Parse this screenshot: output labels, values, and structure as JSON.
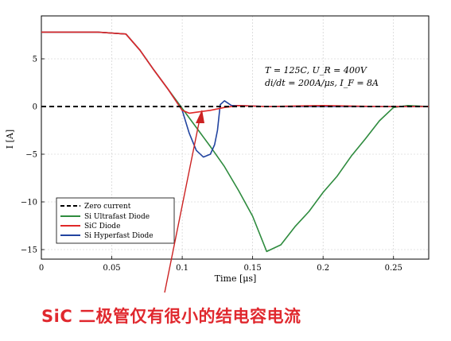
{
  "chart_data": {
    "type": "line",
    "title": "",
    "xlabel": "Time [μs]",
    "ylabel": "I [A]",
    "xlim": [
      0,
      0.275
    ],
    "ylim": [
      -16,
      9.5
    ],
    "xticks": [
      0,
      0.05,
      0.1,
      0.15,
      0.2,
      0.25
    ],
    "xtick_labels": [
      "0",
      "0.05",
      "0.1",
      "0.15",
      "0.2",
      "0.25"
    ],
    "yticks": [
      5,
      0,
      -5,
      -10,
      -15
    ],
    "ytick_labels": [
      "5",
      "0",
      "−5",
      "−10",
      "−15"
    ],
    "grid": true,
    "legend_position": "bottom-left",
    "annotation_lines": [
      "T = 125C, U_R = 400V",
      "di/dt = 200A/μs, I_F = 8A"
    ],
    "series": [
      {
        "name": "Zero current",
        "color": "#000000",
        "style": "dashed",
        "x": [
          0,
          0.275
        ],
        "y": [
          0,
          0
        ]
      },
      {
        "name": "Si Ultrafast Diode",
        "color": "#2e8b3e",
        "style": "solid",
        "x": [
          0,
          0.04,
          0.06,
          0.07,
          0.08,
          0.09,
          0.1,
          0.11,
          0.12,
          0.13,
          0.14,
          0.15,
          0.16,
          0.17,
          0.18,
          0.19,
          0.2,
          0.21,
          0.22,
          0.23,
          0.24,
          0.25,
          0.26,
          0.275
        ],
        "y": [
          7.8,
          7.8,
          7.6,
          5.9,
          3.8,
          1.8,
          -0.2,
          -2.2,
          -4.2,
          -6.3,
          -8.8,
          -11.5,
          -15.2,
          -14.5,
          -12.6,
          -11.0,
          -9.0,
          -7.3,
          -5.2,
          -3.4,
          -1.5,
          -0.1,
          0.1,
          0.0
        ]
      },
      {
        "name": "SiC Diode",
        "color": "#e02828",
        "style": "solid",
        "x": [
          0,
          0.04,
          0.06,
          0.07,
          0.08,
          0.09,
          0.1,
          0.105,
          0.11,
          0.12,
          0.13,
          0.14,
          0.16,
          0.2,
          0.24,
          0.275
        ],
        "y": [
          7.8,
          7.8,
          7.6,
          5.9,
          3.8,
          1.8,
          -0.4,
          -0.7,
          -0.6,
          -0.4,
          -0.1,
          0.1,
          0.0,
          0.1,
          0.0,
          0.0
        ]
      },
      {
        "name": "Si Hyperfast Diode",
        "color": "#2244a0",
        "style": "solid",
        "x": [
          0,
          0.04,
          0.06,
          0.07,
          0.08,
          0.09,
          0.1,
          0.105,
          0.11,
          0.115,
          0.12,
          0.123,
          0.125,
          0.127,
          0.13,
          0.135,
          0.14,
          0.16,
          0.18,
          0.2,
          0.22,
          0.24,
          0.275
        ],
        "y": [
          7.8,
          7.8,
          7.6,
          5.9,
          3.8,
          1.8,
          -0.4,
          -2.8,
          -4.6,
          -5.3,
          -5.0,
          -4.0,
          -2.5,
          0.2,
          0.6,
          0.1,
          0.1,
          0.0,
          0.0,
          0.0,
          0.0,
          0.0,
          0.0
        ]
      }
    ]
  },
  "caption": "SiC 二极管仅有很小的结电容电流",
  "colors": {
    "caption": "#e0282e",
    "arrow": "#cc2222"
  }
}
